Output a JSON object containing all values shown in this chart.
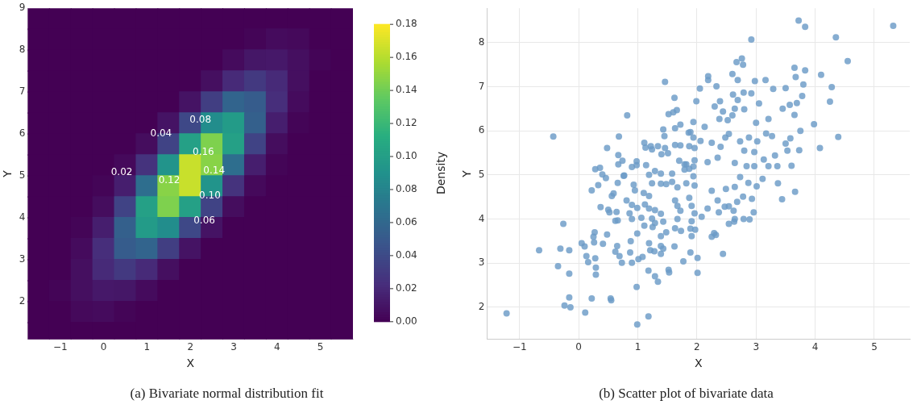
{
  "chart_data": [
    {
      "type": "scatter",
      "marker": "square",
      "xlabel": "X",
      "ylabel": "Y",
      "clabel": "Density",
      "grid": false,
      "x": [
        -1.5,
        -1,
        -0.5,
        0,
        0.5,
        1,
        1.5,
        2,
        2.5,
        3,
        3.5,
        4,
        4.5,
        5,
        5.5,
        -1.5,
        -1,
        -0.5,
        0,
        0.5,
        1,
        1.5,
        2,
        2.5,
        3,
        3.5,
        4,
        4.5,
        5,
        5.5,
        -1.5,
        -1,
        -0.5,
        0,
        0.5,
        1,
        1.5,
        2,
        2.5,
        3,
        3.5,
        4,
        4.5,
        5,
        5.5,
        -1.5,
        -1,
        -0.5,
        0,
        0.5,
        1,
        1.5,
        2,
        2.5,
        3,
        3.5,
        4,
        4.5,
        5,
        5.5,
        -1.5,
        -1,
        -0.5,
        0,
        0.5,
        1,
        1.5,
        2,
        2.5,
        3,
        3.5,
        4,
        4.5,
        5,
        5.5,
        -1.5,
        -1,
        -0.5,
        0,
        0.5,
        1,
        1.5,
        2,
        2.5,
        3,
        3.5,
        4,
        4.5,
        5,
        5.5,
        -1.5,
        -1,
        -0.5,
        0,
        0.5,
        1,
        1.5,
        2,
        2.5,
        3,
        3.5,
        4,
        4.5,
        5,
        5.5,
        -1.5,
        -1,
        -0.5,
        0,
        0.5,
        1,
        1.5,
        2,
        2.5,
        3,
        3.5,
        4,
        4.5,
        5,
        5.5,
        -1.5,
        -1,
        -0.5,
        0,
        0.5,
        1,
        1.5,
        2,
        2.5,
        3,
        3.5,
        4,
        4.5,
        5,
        5.5,
        -1.5,
        -1,
        -0.5,
        0,
        0.5,
        1,
        1.5,
        2,
        2.5,
        3,
        3.5,
        4,
        4.5,
        5,
        5.5,
        -1.5,
        -1,
        -0.5,
        0,
        0.5,
        1,
        1.5,
        2,
        2.5,
        3,
        3.5,
        4,
        4.5,
        5,
        5.5,
        -1.5,
        -1,
        -0.5,
        0,
        0.5,
        1,
        1.5,
        2,
        2.5,
        3,
        3.5,
        4,
        4.5,
        5,
        5.5,
        -1.5,
        -1,
        -0.5,
        0,
        0.5,
        1,
        1.5,
        2,
        2.5,
        3,
        3.5,
        4,
        4.5,
        5,
        5.5,
        -1.5,
        -1,
        -0.5,
        0,
        0.5,
        1,
        1.5,
        2,
        2.5,
        3,
        3.5,
        4,
        4.5,
        5,
        5.5,
        -1.5,
        -1,
        -0.5,
        0,
        0.5,
        1,
        1.5,
        2,
        2.5,
        3,
        3.5,
        4,
        4.5,
        5,
        5.5,
        -1.5,
        -1,
        -0.5,
        0,
        0.5,
        1,
        1.5,
        2,
        2.5,
        3,
        3.5,
        4,
        4.5,
        5,
        5.5
      ],
      "values": [
        8.75,
        8.75,
        8.75,
        8.75,
        8.75,
        8.75,
        8.75,
        8.75,
        8.75,
        8.75,
        8.75,
        8.75,
        8.75,
        8.75,
        8.75,
        8.25,
        8.25,
        8.25,
        8.25,
        8.25,
        8.25,
        8.25,
        8.25,
        8.25,
        8.25,
        8.25,
        8.25,
        8.25,
        8.25,
        8.25,
        7.75,
        7.75,
        7.75,
        7.75,
        7.75,
        7.75,
        7.75,
        7.75,
        7.75,
        7.75,
        7.75,
        7.75,
        7.75,
        7.75,
        7.75,
        7.25,
        7.25,
        7.25,
        7.25,
        7.25,
        7.25,
        7.25,
        7.25,
        7.25,
        7.25,
        7.25,
        7.25,
        7.25,
        7.25,
        7.25,
        6.75,
        6.75,
        6.75,
        6.75,
        6.75,
        6.75,
        6.75,
        6.75,
        6.75,
        6.75,
        6.75,
        6.75,
        6.75,
        6.75,
        6.75,
        6.25,
        6.25,
        6.25,
        6.25,
        6.25,
        6.25,
        6.25,
        6.25,
        6.25,
        6.25,
        6.25,
        6.25,
        6.25,
        6.25,
        6.25,
        5.75,
        5.75,
        5.75,
        5.75,
        5.75,
        5.75,
        5.75,
        5.75,
        5.75,
        5.75,
        5.75,
        5.75,
        5.75,
        5.75,
        5.75,
        5.25,
        5.25,
        5.25,
        5.25,
        5.25,
        5.25,
        5.25,
        5.25,
        5.25,
        5.25,
        5.25,
        5.25,
        5.25,
        5.25,
        5.25,
        4.75,
        4.75,
        4.75,
        4.75,
        4.75,
        4.75,
        4.75,
        4.75,
        4.75,
        4.75,
        4.75,
        4.75,
        4.75,
        4.75,
        4.75,
        4.25,
        4.25,
        4.25,
        4.25,
        4.25,
        4.25,
        4.25,
        4.25,
        4.25,
        4.25,
        4.25,
        4.25,
        4.25,
        4.25,
        4.25,
        3.75,
        3.75,
        3.75,
        3.75,
        3.75,
        3.75,
        3.75,
        3.75,
        3.75,
        3.75,
        3.75,
        3.75,
        3.75,
        3.75,
        3.75,
        3.25,
        3.25,
        3.25,
        3.25,
        3.25,
        3.25,
        3.25,
        3.25,
        3.25,
        3.25,
        3.25,
        3.25,
        3.25,
        3.25,
        3.25,
        2.75,
        2.75,
        2.75,
        2.75,
        2.75,
        2.75,
        2.75,
        2.75,
        2.75,
        2.75,
        2.75,
        2.75,
        2.75,
        2.75,
        2.75,
        2.25,
        2.25,
        2.25,
        2.25,
        2.25,
        2.25,
        2.25,
        2.25,
        2.25,
        2.25,
        2.25,
        2.25,
        2.25,
        2.25,
        2.25,
        1.75,
        1.75,
        1.75,
        1.75,
        1.75,
        1.75,
        1.75,
        1.75,
        1.75,
        1.75,
        1.75,
        1.75,
        1.75,
        1.75,
        1.75,
        1.25,
        1.25,
        1.25,
        1.25,
        1.25,
        1.25,
        1.25,
        1.25,
        1.25,
        1.25,
        1.25,
        1.25,
        1.25,
        1.25,
        1.25
      ],
      "cvalues": [
        0,
        0,
        0,
        0,
        0,
        0,
        0,
        0,
        0,
        0,
        0,
        0,
        0,
        0,
        0,
        0,
        0,
        0,
        0,
        0,
        0,
        0,
        0,
        0,
        0,
        0.002,
        0.005,
        0.004,
        0,
        0,
        0,
        0,
        0,
        0,
        0,
        0,
        0,
        0,
        0,
        0.005,
        0.011,
        0.012,
        0.007,
        0.002,
        0,
        0,
        0,
        0,
        0,
        0,
        0,
        0,
        0,
        0.007,
        0.021,
        0.03,
        0.021,
        0.007,
        0,
        0,
        0,
        0,
        0,
        0,
        0,
        0,
        0,
        0.009,
        0.033,
        0.058,
        0.052,
        0.023,
        0.005,
        0,
        0,
        0,
        0,
        0,
        0,
        0,
        0,
        0.009,
        0.039,
        0.087,
        0.098,
        0.055,
        0.015,
        0.002,
        0,
        0,
        0,
        0,
        0,
        0,
        0,
        0.006,
        0.036,
        0.102,
        0.144,
        0.102,
        0.036,
        0.006,
        0,
        0,
        0,
        0,
        0,
        0,
        0,
        0.004,
        0.026,
        0.092,
        0.165,
        0.147,
        0.065,
        0.015,
        0.002,
        0,
        0,
        0,
        0,
        0,
        0,
        0.002,
        0.015,
        0.065,
        0.147,
        0.165,
        0.092,
        0.026,
        0.004,
        0,
        0,
        0,
        0,
        0,
        0,
        0,
        0.006,
        0.036,
        0.102,
        0.144,
        0.102,
        0.036,
        0.006,
        0,
        0,
        0,
        0,
        0,
        0,
        0,
        0.002,
        0.015,
        0.055,
        0.098,
        0.087,
        0.039,
        0.009,
        0,
        0,
        0,
        0,
        0,
        0,
        0,
        0,
        0.005,
        0.023,
        0.052,
        0.058,
        0.033,
        0.009,
        0,
        0,
        0,
        0,
        0,
        0,
        0,
        0,
        0,
        0.007,
        0.021,
        0.03,
        0.021,
        0.007,
        0,
        0,
        0,
        0,
        0,
        0,
        0,
        0,
        0,
        0.002,
        0.007,
        0.012,
        0.011,
        0.005,
        0,
        0,
        0,
        0,
        0,
        0,
        0,
        0,
        0,
        0,
        0,
        0.004,
        0.005,
        0.002,
        0,
        0,
        0,
        0,
        0,
        0,
        0,
        0,
        0,
        0,
        0,
        0,
        0,
        0,
        0,
        0,
        0,
        0,
        0,
        0,
        0,
        0,
        0,
        0,
        0
      ],
      "clim": [
        0,
        0.18
      ],
      "cticks": [
        {
          "value": 0,
          "label": "0.00"
        },
        {
          "value": 0.02,
          "label": "0.02"
        },
        {
          "value": 0.04,
          "label": "0.04"
        },
        {
          "value": 0.06,
          "label": "0.06"
        },
        {
          "value": 0.08,
          "label": "0.08"
        },
        {
          "value": 0.1,
          "label": "0.10"
        },
        {
          "value": 0.12,
          "label": "0.12"
        },
        {
          "value": 0.14,
          "label": "0.14"
        },
        {
          "value": 0.16,
          "label": "0.16"
        },
        {
          "value": 0.18,
          "label": "0.18"
        }
      ],
      "xlim": [
        -1.75,
        5.75
      ],
      "ylim": [
        1.1,
        9
      ],
      "xticks": [
        -1,
        0,
        1,
        2,
        3,
        4,
        5
      ],
      "yticks": [
        2,
        3,
        4,
        5,
        6,
        7,
        8,
        9
      ],
      "annotations": [
        "0.02",
        "0.04",
        "0.08",
        "0.16",
        "0.14",
        "0.12",
        "0.10",
        "0.06",
        "(a) Bivariate normal distribution fit"
      ]
    },
    {
      "type": "scatter",
      "xlabel": "X",
      "ylabel": "Y",
      "grid": true,
      "marker": "circle",
      "color": "#6b9bc6",
      "xlim": [
        -1.55,
        5.6
      ],
      "ylim": [
        1.27,
        8.78
      ],
      "xticks": [
        -1,
        0,
        1,
        2,
        3,
        4,
        5
      ],
      "yticks": [
        2,
        3,
        4,
        5,
        6,
        7,
        8
      ],
      "x": [
        -0.26,
        -0.67,
        -0.31,
        -0.16,
        -0.35,
        -0.16,
        -0.16,
        -0.24,
        -0.14,
        -1.22,
        0.11,
        0.22,
        0.54,
        0.55,
        0.98,
        1.18,
        0.99,
        0.05,
        0.1,
        0.13,
        0.16,
        0.27,
        0.25,
        0.26,
        0.28,
        0.29,
        0.29,
        0.41,
        0.48,
        0.65,
        0.62,
        0.69,
        0.73,
        0.88,
        0.87,
        0.9,
        0.99,
        1.01,
        1.08,
        1.18,
        1.29,
        1.34,
        1.19,
        1.21,
        1.28,
        1.39,
        1.39,
        1.43,
        1.52,
        1.53,
        1.62,
        1.77,
        1.89,
        2.01,
        2.01,
        1.91,
        1.89,
        1.73,
        1.63,
        1.39,
        1.48,
        1.25,
        1.06,
        1.11,
        1.24,
        1.29,
        1.43,
        0.86,
        0.9,
        0.66,
        0.62,
        0.52,
        0.5,
        0.64,
        0.37,
        0.33,
        0.22,
        0.56,
        0.59,
        0.66,
        0.76,
        0.93,
        0.95,
        1.1,
        1.24,
        1.39,
        1.48,
        1.58,
        1.67,
        1.82,
        1.96,
        1.63,
        1.67,
        1.72,
        1.87,
        1.91,
        1.96,
        1.67,
        1.29,
        1.39,
        1.19,
        0.99,
        0.9,
        0.81,
        1.12,
        1.19,
        2.44,
        2.25,
        2.32,
        2.29,
        1.97,
        1.91,
        2.08,
        2.54,
        2.63,
        2.64,
        2.79,
        2.89,
        2.96,
        2.62,
        2.37,
        2.47,
        2.54,
        2.68,
        2.93,
        2.78,
        3.01,
        3.11,
        3.37,
        3.44,
        3.66,
        2.87,
        2.73,
        2.49,
        2.35,
        2.18,
        2.25,
        2.64,
        3.72,
        3.83,
        5.32,
        4.35,
        4.55,
        2.92,
        2.67,
        2.76,
        2.78,
        2.19,
        2.19,
        2.6,
        2.69,
        2.98,
        3.16,
        3.65,
        3.67,
        3.83,
        4.1,
        4.28,
        4.25,
        3.98,
        4.39,
        4.08,
        3.8,
        3.78,
        3.69,
        3.65,
        3.57,
        3.45,
        3.75,
        3.73,
        3.58,
        3.5,
        3.29,
        3.5,
        2.92,
        3.05,
        3.21,
        3.27,
        3.17,
        3.0,
        2.79,
        2.69,
        2.8,
        2.61,
        2.64,
        2.3,
        2.39,
        2.33,
        2.05,
        1.99,
        2.44,
        2.52,
        2.6,
        2.38,
        3.02,
        2.88,
        2.73,
        2.54,
        2.48,
        2.13,
        1.94,
        1.86,
        2.06,
        2.25,
        2.4,
        2.8,
        2.97,
        3.13,
        3.32,
        3.53,
        3.6,
        3.36,
        3.21,
        2.97,
        2.84,
        2.64,
        2.35,
        2.18,
        1.96,
        1.82,
        1.87,
        -0.43,
        1.46,
        0.82,
        1.62,
        1.52,
        1.6,
        1.66,
        0.68,
        0.48,
        0.67,
        0.67,
        0.74,
        0.28,
        0.36,
        0.4,
        0.46,
        0.77,
        0.9,
        0.98,
        0.98,
        1.14,
        1.11,
        1.13,
        1.22,
        1.24,
        1.34,
        1.46,
        1.43,
        1.45,
        1.63,
        1.72,
        1.63,
        1.72,
        1.87,
        1.89,
        1.94,
        1.4,
        1.51,
        1.7,
        1.79,
        1.58,
        1.39,
        1.29,
        1.19,
        1.79,
        1.94,
        1.96,
        1.94
      ],
      "values": [
        3.89,
        3.29,
        3.33,
        3.29,
        2.93,
        2.76,
        2.22,
        2.04,
        2.0,
        1.86,
        1.88,
        2.2,
        2.2,
        2.16,
        2.46,
        1.79,
        1.61,
        3.45,
        3.38,
        3.16,
        3.02,
        3.7,
        3.6,
        3.47,
        3.11,
        2.9,
        2.74,
        3.44,
        3.65,
        3.39,
        3.26,
        3.16,
        3.01,
        3.5,
        3.24,
        3.01,
        3.67,
        3.09,
        3.14,
        2.83,
        2.7,
        2.58,
        3.45,
        3.29,
        3.27,
        3.39,
        3.21,
        3.33,
        2.85,
        2.79,
        3.38,
        3.04,
        3.24,
        3.12,
        2.78,
        3.61,
        3.78,
        3.73,
        3.79,
        3.61,
        3.7,
        3.82,
        4.03,
        3.85,
        4.01,
        3.91,
        3.94,
        4.13,
        4.0,
        3.97,
        3.96,
        4.15,
        4.21,
        4.16,
        4.27,
        4.77,
        4.65,
        4.52,
        4.58,
        4.82,
        4.98,
        4.78,
        4.65,
        4.59,
        4.81,
        4.8,
        4.79,
        4.84,
        4.72,
        4.81,
        4.76,
        4.42,
        4.3,
        4.19,
        4.48,
        4.3,
        4.13,
        4.0,
        4.2,
        4.12,
        4.24,
        4.25,
        4.32,
        4.42,
        4.33,
        4.52,
        3.21,
        3.6,
        3.64,
        3.68,
        3.76,
        3.95,
        4.05,
        3.89,
        3.94,
        4.0,
        4.0,
        3.99,
        4.15,
        4.19,
        4.15,
        4.28,
        4.29,
        4.39,
        4.46,
        4.51,
        4.74,
        4.91,
        4.81,
        4.45,
        4.62,
        4.82,
        4.95,
        4.68,
        4.42,
        4.24,
        4.64,
        4.73,
        8.5,
        8.36,
        8.38,
        8.12,
        7.58,
        8.07,
        7.56,
        7.64,
        7.5,
        7.24,
        7.15,
        7.29,
        7.15,
        7.13,
        7.15,
        7.43,
        7.22,
        7.37,
        7.27,
        6.99,
        6.66,
        6.15,
        5.86,
        5.61,
        7.05,
        6.79,
        6.63,
        6.36,
        6.59,
        6.5,
        6.0,
        5.56,
        5.83,
        5.71,
        6.95,
        6.97,
        6.85,
        6.62,
        6.27,
        5.88,
        5.94,
        6.18,
        6.87,
        6.7,
        6.49,
        6.82,
        6.5,
        6.55,
        6.67,
        7.01,
        6.96,
        6.67,
        6.44,
        6.24,
        6.35,
        6.27,
        5.76,
        5.85,
        5.76,
        5.93,
        5.85,
        6.09,
        6.2,
        5.96,
        5.77,
        5.73,
        5.64,
        5.55,
        5.52,
        5.35,
        5.44,
        5.55,
        5.21,
        5.2,
        5.2,
        5.2,
        5.2,
        5.27,
        5.39,
        5.29,
        5.61,
        5.24,
        5.14,
        5.87,
        7.11,
        6.35,
        6.75,
        6.38,
        6.42,
        6.47,
        5.87,
        5.61,
        5.45,
        5.24,
        5.32,
        5.13,
        5.16,
        5.01,
        4.93,
        4.99,
        5.18,
        5.31,
        5.22,
        5.22,
        5.73,
        5.62,
        5.65,
        5.58,
        5.65,
        5.61,
        6.03,
        5.88,
        6.06,
        6.14,
        5.68,
        5.67,
        5.65,
        5.97,
        5.85,
        5.47,
        5.49,
        5.32,
        5.24,
        5.03,
        5.03,
        5.09,
        5.0,
        5.12,
        5.19,
        5.33,
        4.97
      ],
      "annotations": [
        "(b) Scatter plot of bivariate data"
      ]
    }
  ]
}
